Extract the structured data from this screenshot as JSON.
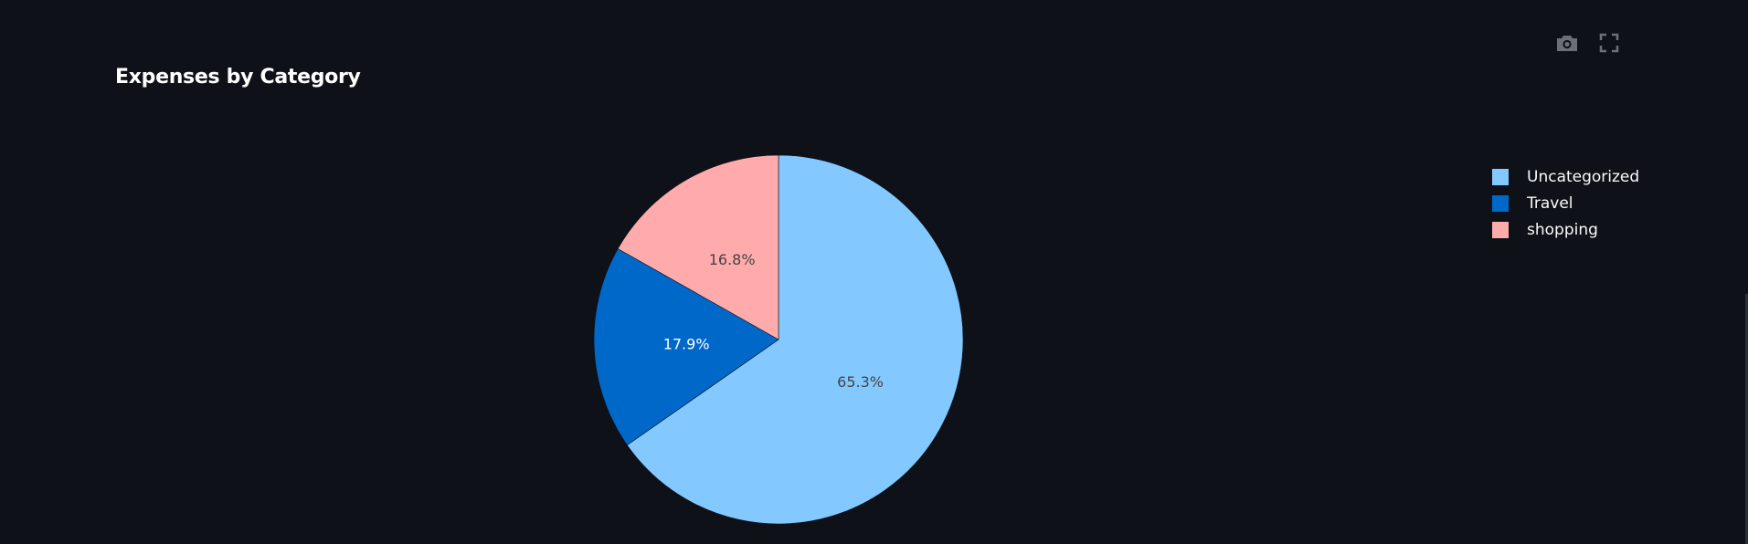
{
  "chart_data": {
    "type": "pie",
    "title": "Expenses by Category",
    "categories": [
      "Uncategorized",
      "Travel",
      "shopping"
    ],
    "values": [
      65.3,
      17.9,
      16.8
    ],
    "value_labels": [
      "65.3%",
      "17.9%",
      "16.8%"
    ],
    "colors": [
      "#83c9ff",
      "#0068c9",
      "#ffabab"
    ],
    "label_colors": [
      "#444444",
      "#ffffff",
      "#444444"
    ],
    "legend_position": "top-right"
  },
  "modebar": {
    "icons": [
      "camera-icon",
      "fullscreen-icon"
    ]
  },
  "colors": {
    "background": "#0e1117",
    "modebar_icon": "#6b6f76"
  }
}
